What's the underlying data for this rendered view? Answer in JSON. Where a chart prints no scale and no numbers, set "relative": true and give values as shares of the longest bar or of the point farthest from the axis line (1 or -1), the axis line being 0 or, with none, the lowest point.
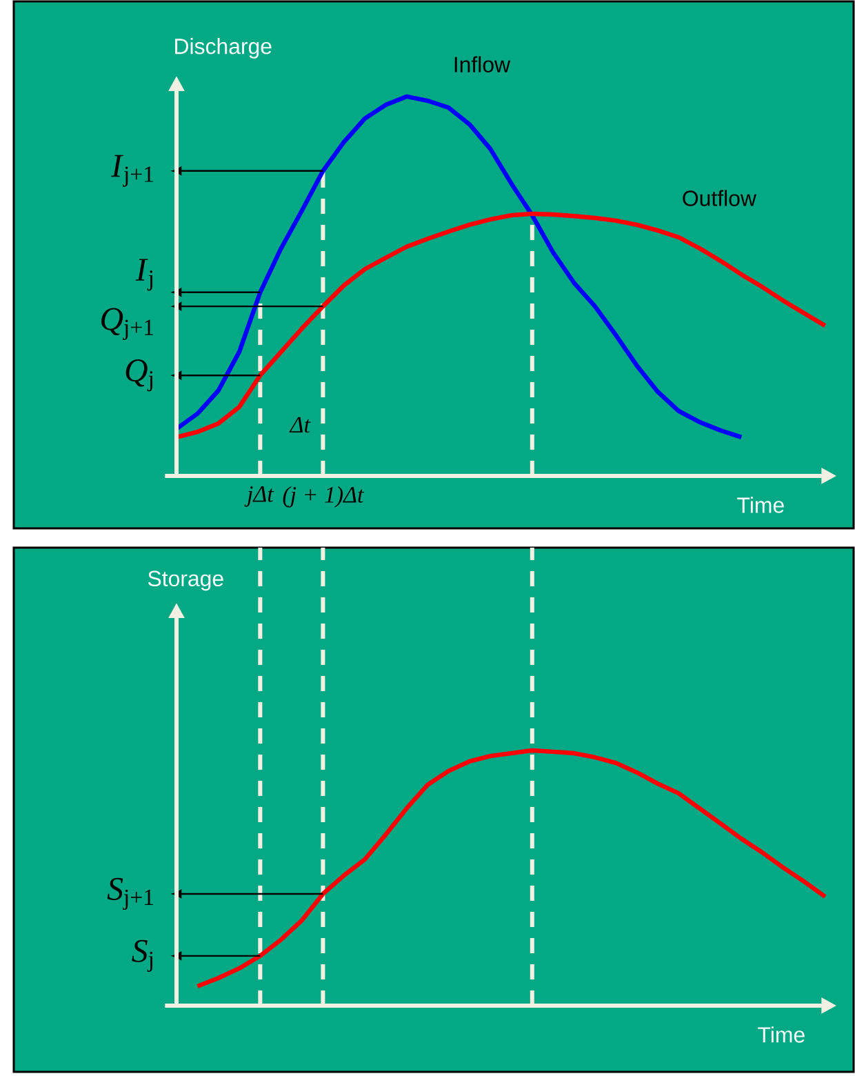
{
  "chart_data": [
    {
      "type": "line",
      "relative": true,
      "xlabel": "Time",
      "ylabel": "Discharge",
      "tick_labels": "x",
      "categories": [
        null,
        null,
        null,
        null,
        "jΔt",
        null,
        null,
        "(j + 1)Δt",
        null,
        null,
        null,
        null,
        null,
        null,
        null,
        null,
        null,
        null,
        null,
        null,
        null,
        null,
        null,
        null,
        null,
        null,
        null,
        null,
        null,
        null,
        null,
        null
      ],
      "series": [
        {
          "name": "Inflow",
          "color": "#0000ff",
          "values": [
            0.124,
            0.164,
            0.225,
            0.327,
            0.484,
            0.6,
            0.7,
            0.804,
            0.88,
            0.942,
            0.978,
            1.0,
            0.989,
            0.971,
            0.927,
            0.862,
            0.771,
            0.687,
            0.589,
            0.509,
            0.447,
            0.371,
            0.291,
            0.222,
            0.171,
            0.142,
            0.12,
            0.102,
            null,
            null,
            null,
            null
          ]
        },
        {
          "name": "Outflow",
          "color": "#ff0000",
          "values": [
            0.102,
            0.116,
            0.138,
            0.182,
            0.265,
            0.327,
            0.389,
            0.447,
            0.502,
            0.545,
            0.575,
            0.604,
            0.625,
            0.644,
            0.662,
            0.676,
            0.687,
            0.691,
            0.689,
            0.685,
            0.68,
            0.673,
            0.662,
            0.647,
            0.629,
            0.6,
            0.567,
            0.531,
            0.498,
            0.462,
            0.429,
            0.396
          ]
        }
      ],
      "ref_lines": [
        {
          "axis": "x",
          "value": "jΔt",
          "color": "#f2efe3",
          "line_style": "dashed"
        },
        {
          "axis": "x",
          "value": "(j + 1)Δt",
          "color": "#f2efe3",
          "line_style": "dashed"
        },
        {
          "axis": "x",
          "color": "#f2efe3",
          "line_style": "dashed"
        }
      ],
      "annotations": [
        "Δt",
        {
          "text": "*I*$_{j+1}$",
          "x": "(j + 1)Δt",
          "y": 0.804
        },
        {
          "text": "*I*$_{j}$",
          "x": "jΔt",
          "y": 0.484
        },
        {
          "text": "*Q*$_{j+1}$",
          "x": "(j + 1)Δt",
          "y": 0.447
        },
        {
          "text": "*Q*$_{j}$",
          "x": "jΔt",
          "y": 0.265
        }
      ]
    },
    {
      "type": "line",
      "relative": true,
      "xlabel": "Time",
      "ylabel": "Storage",
      "tick_labels": false,
      "categories": [
        null,
        null,
        null,
        null,
        "jΔt",
        null,
        null,
        "(j + 1)Δt",
        null,
        null,
        null,
        null,
        null,
        null,
        null,
        null,
        null,
        null,
        null,
        null,
        null,
        null,
        null,
        null,
        null,
        null,
        null,
        null,
        null,
        null,
        null,
        null
      ],
      "series": [
        {
          "color": "#ff0000",
          "values": [
            null,
            0.076,
            0.108,
            0.146,
            0.195,
            0.259,
            0.335,
            0.438,
            0.51,
            0.573,
            0.67,
            0.773,
            0.865,
            0.919,
            0.957,
            0.978,
            0.989,
            1.0,
            0.995,
            0.989,
            0.973,
            0.951,
            0.914,
            0.87,
            0.832,
            0.773,
            0.714,
            0.654,
            0.6,
            0.541,
            0.486,
            0.427
          ]
        }
      ],
      "ref_lines": [
        {
          "axis": "x",
          "value": "jΔt",
          "color": "#f2efe3",
          "line_style": "dashed"
        },
        {
          "axis": "x",
          "value": "(j + 1)Δt",
          "color": "#f2efe3",
          "line_style": "dashed"
        },
        {
          "axis": "x",
          "color": "#f2efe3",
          "line_style": "dashed"
        }
      ],
      "annotations": [
        {
          "text": "*S*$_{j+1}$",
          "x": "(j + 1)Δt",
          "y": 0.438
        },
        {
          "text": "*S*$_{j}$",
          "x": "jΔt",
          "y": 0.195
        }
      ]
    }
  ]
}
